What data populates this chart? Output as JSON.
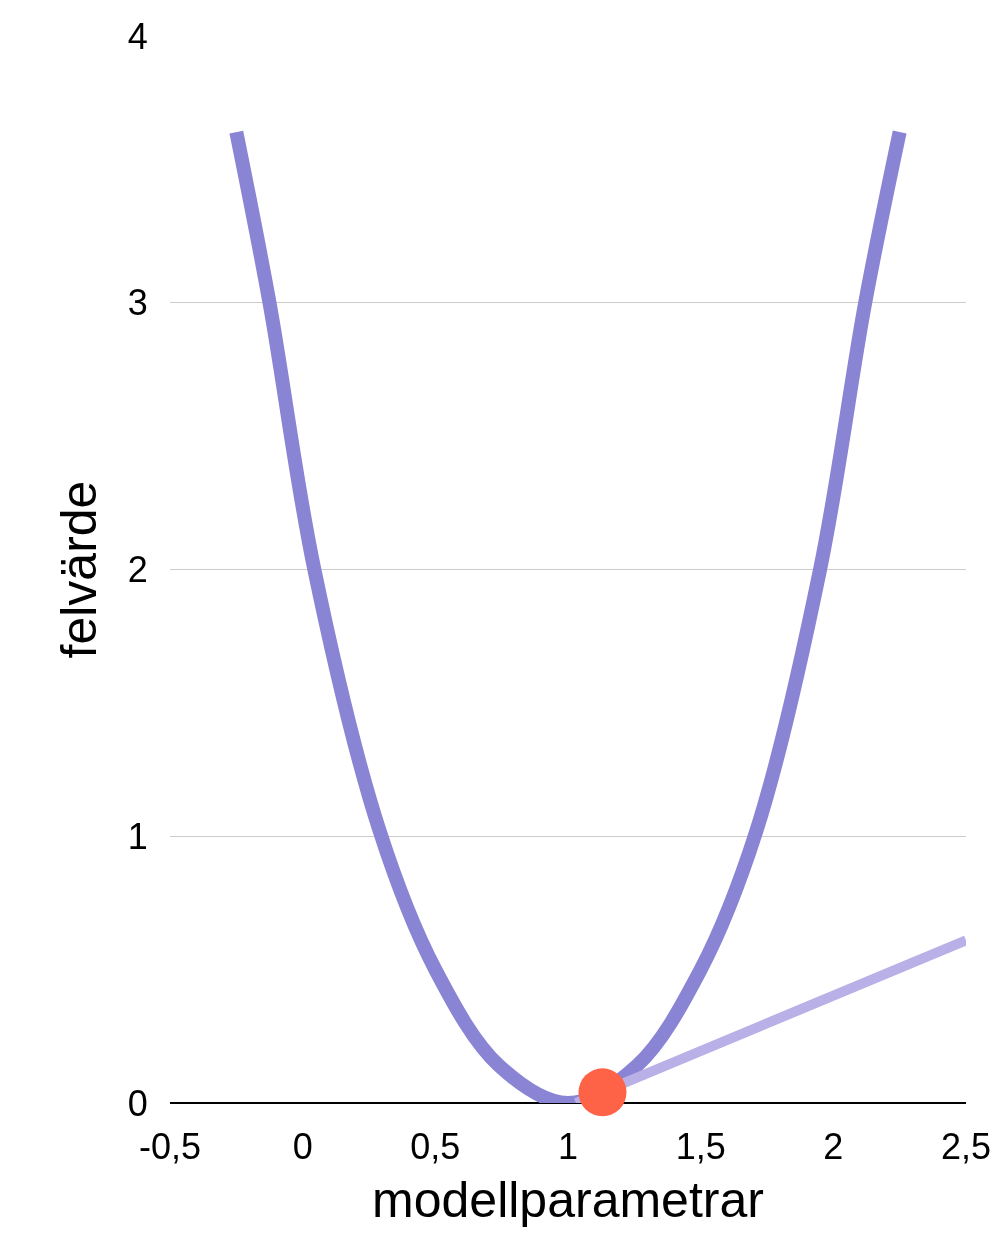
{
  "chart_data": {
    "type": "line",
    "xlabel": "modellparametrar",
    "ylabel": "felvärde",
    "xlim": [
      -0.5,
      2.5
    ],
    "ylim": [
      0,
      4
    ],
    "xticks": [
      {
        "value": -0.5,
        "label": "-0,5"
      },
      0,
      {
        "value": 0.5,
        "label": "0,5"
      },
      1,
      {
        "value": 1.5,
        "label": "1,5"
      },
      2,
      {
        "value": 2.5,
        "label": "2,5"
      }
    ],
    "yticks": [
      0,
      1,
      2,
      3,
      4
    ],
    "grid": "y",
    "series": [
      {
        "color": "#8a84d4",
        "x": [
          -0.25,
          -0.125,
          0.044,
          0.29,
          0.5,
          0.74,
          1.0,
          1.26,
          1.5,
          1.71,
          1.95,
          2.12,
          2.25
        ],
        "values": [
          3.64,
          3.0,
          2.0,
          1.02,
          0.5,
          0.14,
          0,
          0.14,
          0.5,
          1.02,
          2.0,
          3.0,
          3.64
        ]
      },
      {
        "type": "line",
        "color": "#b8b0e6",
        "x": [
          1.03,
          2.5
        ],
        "values": [
          0,
          0.61
        ]
      },
      {
        "type": "scatter",
        "color": "#ff6347",
        "marker": "circle",
        "x": [
          1.13
        ],
        "values": [
          0.04
        ]
      }
    ]
  }
}
